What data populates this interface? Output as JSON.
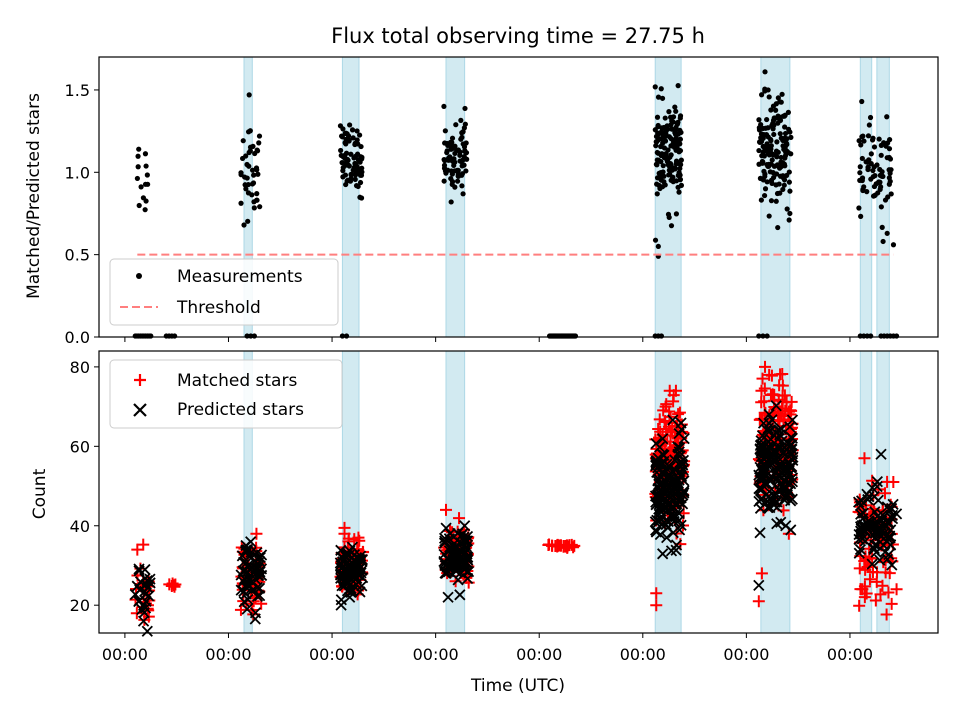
{
  "chart_data": {
    "title": "Flux total observing time = 27.75 h",
    "xlabel": "Time (UTC)",
    "x_tick_labels": [
      "00:00",
      "00:00",
      "00:00",
      "00:00",
      "00:00",
      "00:00",
      "00:00",
      "00:00"
    ],
    "x_tick_days": [
      0,
      1,
      2,
      3,
      4,
      5,
      6,
      7
    ],
    "x_range_days": [
      -0.25,
      7.85
    ],
    "highlight_bands_days": [
      [
        1.15,
        1.23
      ],
      [
        2.1,
        2.26
      ],
      [
        3.1,
        3.28
      ],
      [
        5.12,
        5.37
      ],
      [
        6.14,
        6.42
      ],
      [
        7.1,
        7.21
      ],
      [
        7.26,
        7.38
      ]
    ],
    "panels": [
      {
        "type": "scatter",
        "ylabel": "Matched/Predicted stars",
        "ylim": [
          0,
          1.7
        ],
        "yticks": [
          0.0,
          0.5,
          1.0,
          1.5
        ],
        "y_tick_labels": [
          "0.0",
          "0.5",
          "1.0",
          "1.5"
        ],
        "legend_position": "lower-left",
        "colors": {
          "measurements": "#000000",
          "threshold": "#ff7f7f",
          "band": "#add8e6"
        },
        "series": [
          {
            "name": "Measurements",
            "clusters": [
              {
                "t_start": 0.1,
                "t_end": 0.22,
                "center": 0.98,
                "spread": 0.13,
                "n": 14
              },
              {
                "t_start": 1.12,
                "t_end": 1.31,
                "center": 1.04,
                "spread": 0.14,
                "n": 40
              },
              {
                "t_start": 2.08,
                "t_end": 2.29,
                "center": 1.07,
                "spread": 0.1,
                "n": 80
              },
              {
                "t_start": 3.08,
                "t_end": 3.3,
                "center": 1.1,
                "spread": 0.1,
                "n": 80
              },
              {
                "t_start": 5.12,
                "t_end": 5.38,
                "center": 1.11,
                "spread": 0.15,
                "n": 150
              },
              {
                "t_start": 6.12,
                "t_end": 6.43,
                "center": 1.12,
                "spread": 0.16,
                "n": 160
              },
              {
                "t_start": 7.08,
                "t_end": 7.4,
                "center": 1.0,
                "spread": 0.14,
                "n": 80
              }
            ],
            "outliers": [
              [
                1.2,
                1.47
              ],
              [
                1.15,
                0.68
              ],
              [
                6.18,
                1.61
              ],
              [
                6.21,
                1.5
              ],
              [
                3.08,
                1.4
              ],
              [
                5.15,
                0.55
              ],
              [
                5.15,
                0.49
              ],
              [
                6.42,
                0.75
              ],
              [
                7.32,
                0.58
              ],
              [
                7.42,
                0.56
              ],
              [
                3.15,
                0.82
              ]
            ],
            "zeros": [
              {
                "t_start": 0.1,
                "t_end": 0.25,
                "n": 10
              },
              {
                "t_start": 0.4,
                "t_end": 0.48,
                "n": 4
              },
              {
                "t_start": 1.18,
                "t_end": 1.25,
                "n": 3
              },
              {
                "t_start": 2.1,
                "t_end": 2.14,
                "n": 2
              },
              {
                "t_start": 4.1,
                "t_end": 4.35,
                "n": 30
              },
              {
                "t_start": 5.12,
                "t_end": 5.18,
                "n": 3
              },
              {
                "t_start": 6.12,
                "t_end": 6.2,
                "n": 3
              },
              {
                "t_start": 7.1,
                "t_end": 7.2,
                "n": 4
              },
              {
                "t_start": 7.3,
                "t_end": 7.45,
                "n": 6
              }
            ]
          },
          {
            "name": "Threshold",
            "style": "dashed",
            "x": [
              0.12,
              7.42
            ],
            "y": [
              0.5,
              0.5
            ]
          }
        ]
      },
      {
        "type": "scatter",
        "ylabel": "Count",
        "ylim": [
          13,
          84
        ],
        "yticks": [
          20,
          40,
          60,
          80
        ],
        "y_tick_labels": [
          "20",
          "40",
          "60",
          "80"
        ],
        "legend_position": "upper-left",
        "colors": {
          "matched": "#ff0000",
          "predicted": "#000000",
          "band": "#add8e6"
        },
        "series": [
          {
            "name": "Matched stars",
            "marker": "+",
            "clusters": [
              {
                "t_start": 0.1,
                "t_end": 0.25,
                "center": 24,
                "spread": 4.5,
                "n": 25
              },
              {
                "t_start": 0.42,
                "t_end": 0.5,
                "center": 25,
                "spread": 0.3,
                "n": 6
              },
              {
                "t_start": 1.12,
                "t_end": 1.32,
                "center": 27,
                "spread": 4.5,
                "n": 55
              },
              {
                "t_start": 2.08,
                "t_end": 2.3,
                "center": 30,
                "spread": 3,
                "n": 90
              },
              {
                "t_start": 3.08,
                "t_end": 3.32,
                "center": 33,
                "spread": 3.5,
                "n": 90
              },
              {
                "t_start": 4.08,
                "t_end": 4.35,
                "center": 35,
                "spread": 0.2,
                "n": 25
              },
              {
                "t_start": 5.12,
                "t_end": 5.4,
                "center": 55,
                "spread": 7.5,
                "n": 160
              },
              {
                "t_start": 6.12,
                "t_end": 6.45,
                "center": 60,
                "spread": 8,
                "n": 170
              },
              {
                "t_start": 7.08,
                "t_end": 7.42,
                "center": 36,
                "spread": 7,
                "n": 90
              }
            ],
            "outliers": [
              [
                0.12,
                34
              ],
              [
                1.27,
                38
              ],
              [
                5.13,
                23
              ],
              [
                5.13,
                20
              ],
              [
                5.22,
                70
              ],
              [
                5.26,
                74
              ],
              [
                5.32,
                74
              ],
              [
                6.18,
                80
              ],
              [
                6.22,
                78
              ],
              [
                6.12,
                21
              ],
              [
                6.15,
                28
              ],
              [
                6.41,
                38
              ],
              [
                7.14,
                57
              ],
              [
                7.12,
                24
              ],
              [
                7.45,
                24
              ],
              [
                3.1,
                44
              ],
              [
                2.12,
                38
              ]
            ]
          },
          {
            "name": "Predicted stars",
            "marker": "x",
            "clusters": [
              {
                "t_start": 0.1,
                "t_end": 0.25,
                "center": 23,
                "spread": 4,
                "n": 25
              },
              {
                "t_start": 1.12,
                "t_end": 1.32,
                "center": 27,
                "spread": 4,
                "n": 55
              },
              {
                "t_start": 2.08,
                "t_end": 2.3,
                "center": 29,
                "spread": 2.7,
                "n": 90
              },
              {
                "t_start": 3.08,
                "t_end": 3.32,
                "center": 32,
                "spread": 3.2,
                "n": 90
              },
              {
                "t_start": 5.12,
                "t_end": 5.4,
                "center": 49,
                "spread": 6.5,
                "n": 160
              },
              {
                "t_start": 6.12,
                "t_end": 6.45,
                "center": 54,
                "spread": 6.5,
                "n": 170
              },
              {
                "t_start": 7.08,
                "t_end": 7.42,
                "center": 39,
                "spread": 5,
                "n": 90
              }
            ],
            "outliers": [
              [
                0.18,
                16
              ],
              [
                1.18,
                19
              ],
              [
                2.17,
                22
              ],
              [
                3.12,
                22
              ],
              [
                6.12,
                25
              ],
              [
                6.22,
                68
              ],
              [
                6.38,
                40
              ],
              [
                7.3,
                58
              ],
              [
                7.45,
                43
              ],
              [
                3.28,
                40
              ]
            ]
          }
        ]
      }
    ]
  }
}
